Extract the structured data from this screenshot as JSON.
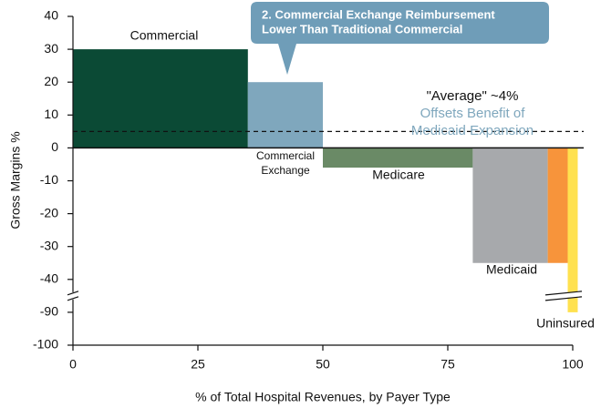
{
  "chart_data": {
    "type": "variable_width_bar",
    "y_label": "Gross Margins %",
    "x_label": "% of Total Hospital Revenues, by Payer Type",
    "categories": [
      "Commercial",
      "Commercial Exchange",
      "Medicare",
      "Medicaid",
      null,
      "Uninsured"
    ],
    "edges": [
      0,
      35,
      50,
      80,
      95,
      99,
      101
    ],
    "values": [
      30,
      20,
      -6,
      -35,
      -35,
      -90
    ],
    "colors": [
      "#0b4a35",
      "#7fa7bd",
      "#6a8a66",
      "#a7a9ac",
      "#f7943b",
      "#ffe14f"
    ],
    "ylim": [
      -100,
      40
    ],
    "y_break": [
      -85,
      -45
    ],
    "yticks": [
      40,
      30,
      20,
      10,
      0,
      -10,
      -20,
      -30,
      -40,
      -90,
      -100
    ],
    "xlim": [
      0,
      100
    ],
    "xticks": [
      0,
      25,
      50,
      75,
      100
    ],
    "reference_line": {
      "value": 5,
      "lines": [
        "\"Average\" ~4%",
        "Offsets Benefit of",
        "Medicaid Expansion"
      ]
    },
    "callout": {
      "lines": [
        "2. Commercial Exchange Reimbursement",
        "Lower Than Traditional Commercial"
      ]
    }
  }
}
